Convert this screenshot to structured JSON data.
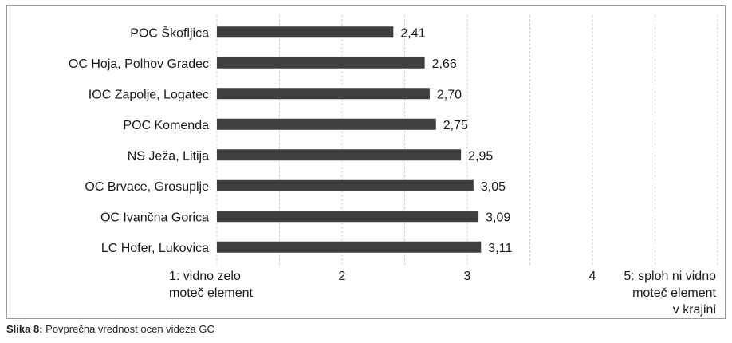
{
  "chart_data": {
    "type": "bar",
    "orientation": "horizontal",
    "categories": [
      "POC Škofljica",
      "OC Hoja, Polhov Gradec",
      "IOC Zapolje, Logatec",
      "POC Komenda",
      "NS Ježa, Litija",
      "OC Brvace, Grosuplje",
      "OC Ivančna Gorica",
      "LC Hofer, Lukovica"
    ],
    "values": [
      2.41,
      2.66,
      2.7,
      2.75,
      2.95,
      3.05,
      3.09,
      3.11
    ],
    "value_labels": [
      "2,41",
      "2,66",
      "2,70",
      "2,75",
      "2,95",
      "3,05",
      "3,09",
      "3,11"
    ],
    "xlim": [
      1,
      5
    ],
    "x_ticks": [
      {
        "value": 1,
        "lines": [
          "1: vidno zelo",
          "moteč element"
        ]
      },
      {
        "value": 2,
        "lines": [
          "2"
        ]
      },
      {
        "value": 3,
        "lines": [
          "3"
        ]
      },
      {
        "value": 4,
        "lines": [
          "4"
        ]
      },
      {
        "value": 5,
        "lines": [
          "5: sploh ni vidno",
          "moteč element",
          "v krajini"
        ]
      }
    ],
    "grid": true,
    "legend": "none",
    "bar_color": "#3f3f3f",
    "grid_color": "#d0d0d0"
  },
  "caption": {
    "label": "Slika 8:",
    "text": " Povprečna vrednost ocen videza GC"
  }
}
